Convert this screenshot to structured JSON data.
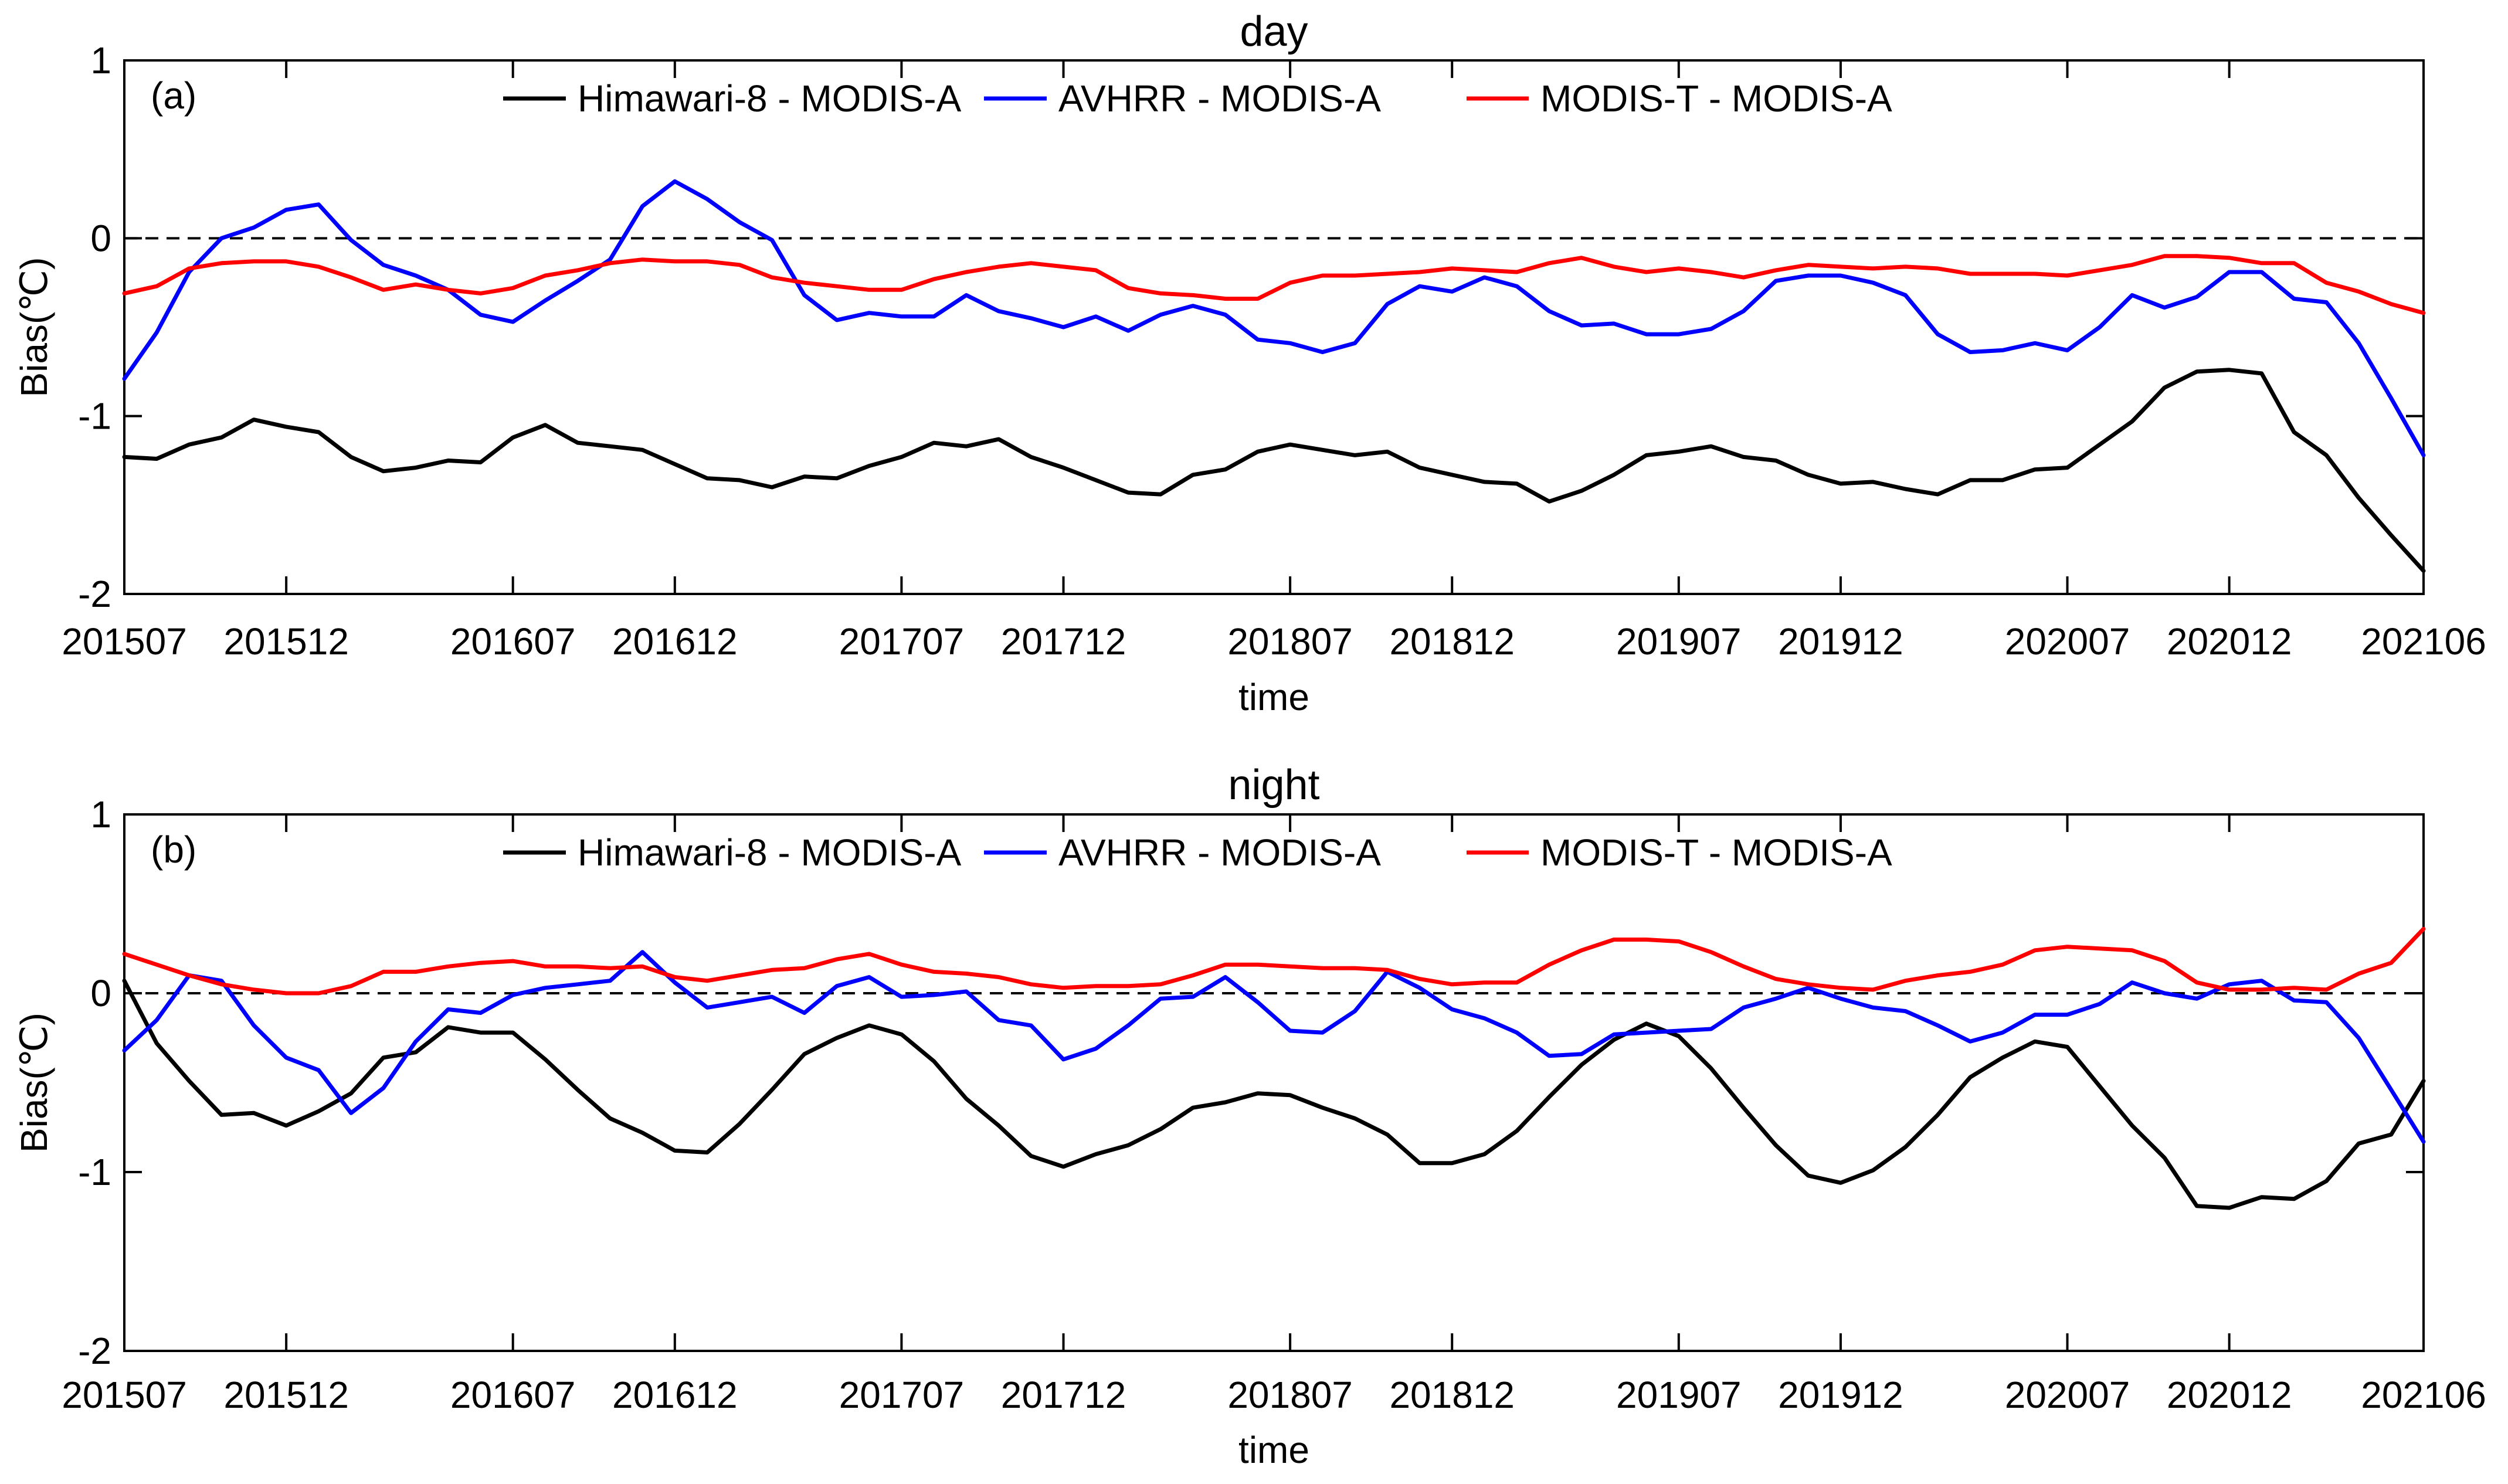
{
  "chart_data": [
    {
      "type": "line",
      "title": "day",
      "panel_label": "(a)",
      "xlabel": "time",
      "ylabel": "Bias(℃)",
      "ylim": [
        -2,
        1
      ],
      "yticks": [
        -2,
        -1,
        0,
        1
      ],
      "x_range": [
        "201507",
        "202106"
      ],
      "x_ticks": [
        "201507",
        "201512",
        "201607",
        "201612",
        "201707",
        "201712",
        "201807",
        "201812",
        "201907",
        "201912",
        "202007",
        "202012",
        "202106"
      ],
      "grid": false,
      "reference_line": 0,
      "legend_position": "top",
      "x": [
        "201507",
        "201508",
        "201509",
        "201510",
        "201511",
        "201512",
        "201601",
        "201602",
        "201603",
        "201604",
        "201605",
        "201606",
        "201607",
        "201608",
        "201609",
        "201610",
        "201611",
        "201612",
        "201701",
        "201702",
        "201703",
        "201704",
        "201705",
        "201706",
        "201707",
        "201708",
        "201709",
        "201710",
        "201711",
        "201712",
        "201801",
        "201802",
        "201803",
        "201804",
        "201805",
        "201806",
        "201807",
        "201808",
        "201809",
        "201810",
        "201811",
        "201812",
        "201901",
        "201902",
        "201903",
        "201904",
        "201905",
        "201906",
        "201907",
        "201908",
        "201909",
        "201910",
        "201911",
        "201912",
        "202001",
        "202002",
        "202003",
        "202004",
        "202005",
        "202006",
        "202007",
        "202008",
        "202009",
        "202010",
        "202011",
        "202012",
        "202101",
        "202102",
        "202103",
        "202104",
        "202105",
        "202106"
      ],
      "series": [
        {
          "name": "Himawari-8 - MODIS-A",
          "color": "#000000",
          "values": [
            -1.23,
            -1.24,
            -1.16,
            -1.12,
            -1.02,
            -1.06,
            -1.09,
            -1.23,
            -1.31,
            -1.29,
            -1.25,
            -1.26,
            -1.12,
            -1.05,
            -1.15,
            -1.17,
            -1.19,
            -1.27,
            -1.35,
            -1.36,
            -1.4,
            -1.34,
            -1.35,
            -1.28,
            -1.23,
            -1.15,
            -1.17,
            -1.13,
            -1.23,
            -1.29,
            -1.36,
            -1.43,
            -1.44,
            -1.33,
            -1.3,
            -1.2,
            -1.16,
            -1.19,
            -1.22,
            -1.2,
            -1.29,
            -1.33,
            -1.37,
            -1.38,
            -1.48,
            -1.42,
            -1.33,
            -1.22,
            -1.2,
            -1.17,
            -1.23,
            -1.25,
            -1.33,
            -1.38,
            -1.37,
            -1.41,
            -1.44,
            -1.36,
            -1.36,
            -1.3,
            -1.29,
            -1.16,
            -1.03,
            -0.84,
            -0.75,
            -0.74,
            -0.76,
            -1.09,
            -1.22,
            -1.46,
            -1.67,
            -1.87
          ]
        },
        {
          "name": "AVHRR - MODIS-A",
          "color": "#0000ff",
          "values": [
            -0.79,
            -0.53,
            -0.19,
            0.0,
            0.06,
            0.16,
            0.19,
            -0.01,
            -0.15,
            -0.21,
            -0.29,
            -0.43,
            -0.47,
            -0.35,
            -0.24,
            -0.12,
            0.18,
            0.32,
            0.22,
            0.09,
            -0.01,
            -0.32,
            -0.46,
            -0.42,
            -0.44,
            -0.44,
            -0.32,
            -0.41,
            -0.45,
            -0.5,
            -0.44,
            -0.52,
            -0.43,
            -0.38,
            -0.43,
            -0.57,
            -0.59,
            -0.64,
            -0.59,
            -0.37,
            -0.27,
            -0.3,
            -0.22,
            -0.27,
            -0.41,
            -0.49,
            -0.48,
            -0.54,
            -0.54,
            -0.51,
            -0.41,
            -0.24,
            -0.21,
            -0.21,
            -0.25,
            -0.32,
            -0.54,
            -0.64,
            -0.63,
            -0.59,
            -0.63,
            -0.5,
            -0.32,
            -0.39,
            -0.33,
            -0.19,
            -0.19,
            -0.34,
            -0.36,
            -0.59,
            -0.9,
            -1.22
          ]
        },
        {
          "name": "MODIS-T - MODIS-A",
          "color": "#ff0000",
          "values": [
            -0.31,
            -0.27,
            -0.17,
            -0.14,
            -0.13,
            -0.13,
            -0.16,
            -0.22,
            -0.29,
            -0.26,
            -0.29,
            -0.31,
            -0.28,
            -0.21,
            -0.18,
            -0.14,
            -0.12,
            -0.13,
            -0.13,
            -0.15,
            -0.22,
            -0.25,
            -0.27,
            -0.29,
            -0.29,
            -0.23,
            -0.19,
            -0.16,
            -0.14,
            -0.16,
            -0.18,
            -0.28,
            -0.31,
            -0.32,
            -0.34,
            -0.34,
            -0.25,
            -0.21,
            -0.21,
            -0.2,
            -0.19,
            -0.17,
            -0.18,
            -0.19,
            -0.14,
            -0.11,
            -0.16,
            -0.19,
            -0.17,
            -0.19,
            -0.22,
            -0.18,
            -0.15,
            -0.16,
            -0.17,
            -0.16,
            -0.17,
            -0.2,
            -0.2,
            -0.2,
            -0.21,
            -0.18,
            -0.15,
            -0.1,
            -0.1,
            -0.11,
            -0.14,
            -0.14,
            -0.25,
            -0.3,
            -0.37,
            -0.42
          ]
        }
      ]
    },
    {
      "type": "line",
      "title": "night",
      "panel_label": "(b)",
      "xlabel": "time",
      "ylabel": "Bias(℃)",
      "ylim": [
        -2,
        1
      ],
      "yticks": [
        -2,
        -1,
        0,
        1
      ],
      "x_range": [
        "201507",
        "202106"
      ],
      "x_ticks": [
        "201507",
        "201512",
        "201607",
        "201612",
        "201707",
        "201712",
        "201807",
        "201812",
        "201907",
        "201912",
        "202007",
        "202012",
        "202106"
      ],
      "grid": false,
      "reference_line": 0,
      "legend_position": "top",
      "x": [
        "201507",
        "201508",
        "201509",
        "201510",
        "201511",
        "201512",
        "201601",
        "201602",
        "201603",
        "201604",
        "201605",
        "201606",
        "201607",
        "201608",
        "201609",
        "201610",
        "201611",
        "201612",
        "201701",
        "201702",
        "201703",
        "201704",
        "201705",
        "201706",
        "201707",
        "201708",
        "201709",
        "201710",
        "201711",
        "201712",
        "201801",
        "201802",
        "201803",
        "201804",
        "201805",
        "201806",
        "201807",
        "201808",
        "201809",
        "201810",
        "201811",
        "201812",
        "201901",
        "201902",
        "201903",
        "201904",
        "201905",
        "201906",
        "201907",
        "201908",
        "201909",
        "201910",
        "201911",
        "201912",
        "202001",
        "202002",
        "202003",
        "202004",
        "202005",
        "202006",
        "202007",
        "202008",
        "202009",
        "202010",
        "202011",
        "202012",
        "202101",
        "202102",
        "202103",
        "202104",
        "202105",
        "202106"
      ],
      "series": [
        {
          "name": "Himawari-8 - MODIS-A",
          "color": "#000000",
          "values": [
            0.07,
            -0.28,
            -0.49,
            -0.68,
            -0.67,
            -0.74,
            -0.66,
            -0.56,
            -0.36,
            -0.33,
            -0.19,
            -0.22,
            -0.22,
            -0.37,
            -0.54,
            -0.7,
            -0.78,
            -0.88,
            -0.89,
            -0.73,
            -0.54,
            -0.34,
            -0.25,
            -0.18,
            -0.23,
            -0.38,
            -0.59,
            -0.74,
            -0.91,
            -0.97,
            -0.9,
            -0.85,
            -0.76,
            -0.64,
            -0.61,
            -0.56,
            -0.57,
            -0.64,
            -0.7,
            -0.79,
            -0.95,
            -0.95,
            -0.9,
            -0.77,
            -0.58,
            -0.4,
            -0.26,
            -0.17,
            -0.24,
            -0.42,
            -0.64,
            -0.85,
            -1.02,
            -1.06,
            -0.99,
            -0.86,
            -0.68,
            -0.47,
            -0.36,
            -0.27,
            -0.3,
            -0.52,
            -0.74,
            -0.92,
            -1.19,
            -1.2,
            -1.14,
            -1.15,
            -1.05,
            -0.84,
            -0.79,
            -0.49
          ]
        },
        {
          "name": "AVHRR - MODIS-A",
          "color": "#0000ff",
          "values": [
            -0.32,
            -0.15,
            0.1,
            0.07,
            -0.18,
            -0.36,
            -0.43,
            -0.67,
            -0.53,
            -0.27,
            -0.09,
            -0.11,
            -0.01,
            0.03,
            0.05,
            0.07,
            0.23,
            0.06,
            -0.08,
            -0.05,
            -0.02,
            -0.11,
            0.04,
            0.09,
            -0.02,
            -0.01,
            0.01,
            -0.15,
            -0.18,
            -0.37,
            -0.31,
            -0.18,
            -0.03,
            -0.02,
            0.09,
            -0.05,
            -0.21,
            -0.22,
            -0.1,
            0.12,
            0.03,
            -0.09,
            -0.14,
            -0.22,
            -0.35,
            -0.34,
            -0.23,
            -0.22,
            -0.21,
            -0.2,
            -0.08,
            -0.03,
            0.03,
            -0.03,
            -0.08,
            -0.1,
            -0.18,
            -0.27,
            -0.22,
            -0.12,
            -0.12,
            -0.06,
            0.06,
            0.0,
            -0.03,
            0.05,
            0.07,
            -0.04,
            -0.05,
            -0.25,
            -0.54,
            -0.83
          ]
        },
        {
          "name": "MODIS-T - MODIS-A",
          "color": "#ff0000",
          "values": [
            0.22,
            0.16,
            0.1,
            0.05,
            0.02,
            0.0,
            0.0,
            0.04,
            0.12,
            0.12,
            0.15,
            0.17,
            0.18,
            0.15,
            0.15,
            0.14,
            0.15,
            0.09,
            0.07,
            0.1,
            0.13,
            0.14,
            0.19,
            0.22,
            0.16,
            0.12,
            0.11,
            0.09,
            0.05,
            0.03,
            0.04,
            0.04,
            0.05,
            0.1,
            0.16,
            0.16,
            0.15,
            0.14,
            0.14,
            0.13,
            0.08,
            0.05,
            0.06,
            0.06,
            0.16,
            0.24,
            0.3,
            0.3,
            0.29,
            0.23,
            0.15,
            0.08,
            0.05,
            0.03,
            0.02,
            0.07,
            0.1,
            0.12,
            0.16,
            0.24,
            0.26,
            0.25,
            0.24,
            0.18,
            0.06,
            0.02,
            0.02,
            0.03,
            0.02,
            0.11,
            0.17,
            0.36
          ]
        }
      ]
    }
  ]
}
